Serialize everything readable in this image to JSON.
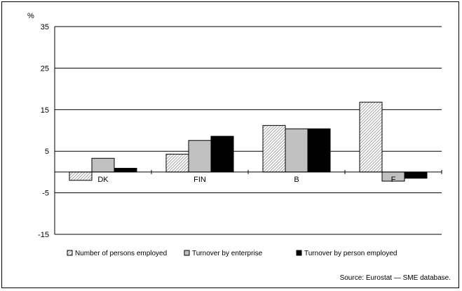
{
  "chart_data": {
    "type": "bar",
    "ylabel": "%",
    "ylim": [
      -15,
      35
    ],
    "yticks": [
      35,
      25,
      15,
      5,
      -5,
      -15
    ],
    "grid": true,
    "legend_position": "bottom",
    "categories": [
      "DK",
      "FIN",
      "B",
      "F"
    ],
    "series": [
      {
        "name": "Number of persons employed",
        "values": [
          -2.0,
          4.3,
          11.2,
          16.8
        ],
        "color": "#d0d0d0",
        "pattern": "hatched"
      },
      {
        "name": "Turnover by enterprise",
        "values": [
          3.3,
          7.6,
          10.4,
          -2.2
        ],
        "color": "#c0c0c0",
        "pattern": "solid"
      },
      {
        "name": "Turnover by person employed",
        "values": [
          0.9,
          8.6,
          10.4,
          -1.5
        ],
        "color": "#000000",
        "pattern": "solid"
      }
    ],
    "source": "Source: Eurostat — SME database."
  }
}
